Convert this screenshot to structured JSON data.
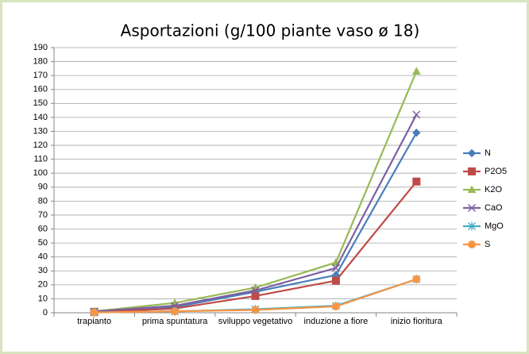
{
  "chart_data": {
    "type": "line",
    "title": "Asportazioni (g/100 piante vaso ø 18)",
    "categories": [
      "trapianto",
      "prima spuntatura",
      "sviluppo vegetativo",
      "induzione a fiore",
      "inizio fioritura"
    ],
    "series": [
      {
        "name": "N",
        "color": "#4a7ebb",
        "marker": "diamond",
        "values": [
          1,
          4,
          15,
          27,
          129
        ]
      },
      {
        "name": "P2O5",
        "color": "#be4b48",
        "marker": "square",
        "values": [
          0.5,
          3,
          12,
          23,
          94
        ]
      },
      {
        "name": "K2O",
        "color": "#98b954",
        "marker": "triangle",
        "values": [
          1,
          7,
          18,
          36,
          173
        ]
      },
      {
        "name": "CaO",
        "color": "#7d60a0",
        "marker": "x",
        "values": [
          1,
          5,
          16,
          32,
          142
        ]
      },
      {
        "name": "MgO",
        "color": "#46aac5",
        "marker": "star",
        "values": [
          0.2,
          1,
          2.5,
          5,
          24
        ]
      },
      {
        "name": "S",
        "color": "#f79646",
        "marker": "circle",
        "values": [
          0.2,
          1,
          2,
          4.5,
          24
        ]
      }
    ],
    "ylim": [
      0,
      190
    ],
    "yticks": [
      0,
      10,
      20,
      30,
      40,
      50,
      60,
      70,
      80,
      90,
      100,
      110,
      120,
      130,
      140,
      150,
      160,
      170,
      180,
      190
    ],
    "grid": true,
    "legend": "right"
  }
}
